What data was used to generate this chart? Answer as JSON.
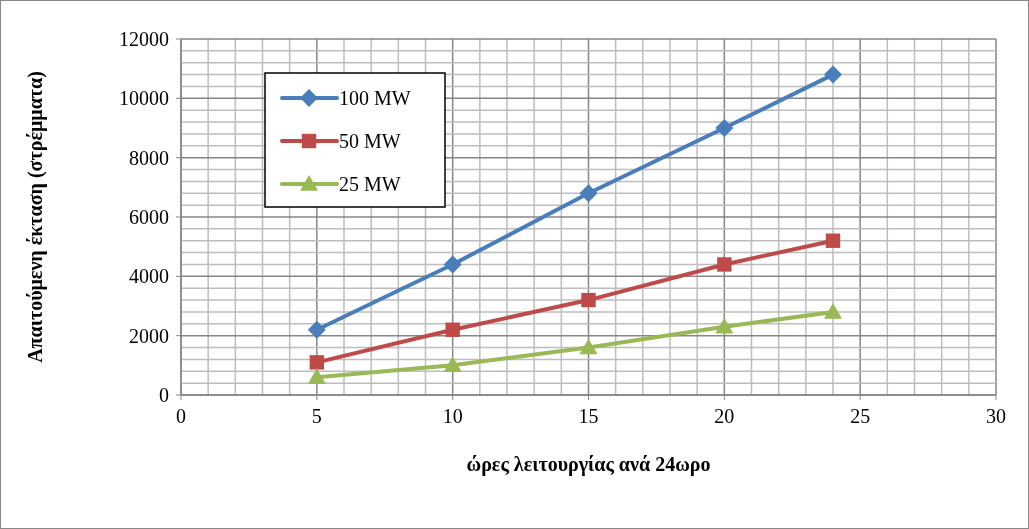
{
  "chart_data": {
    "type": "line",
    "xlabel": "ώρες λειτουργίας ανά 24ωρο",
    "ylabel": "Απαιτούμενη έκταση (στρέμματα)",
    "x": [
      5,
      10,
      15,
      20,
      24
    ],
    "series": [
      {
        "name": "100 MW",
        "color": "#4a7ebb",
        "marker": "diamond",
        "values": [
          2200,
          4400,
          6800,
          9000,
          10800
        ]
      },
      {
        "name": "50 MW",
        "color": "#be4b48",
        "marker": "square",
        "values": [
          1100,
          2200,
          3200,
          4400,
          5200
        ]
      },
      {
        "name": "25 MW",
        "color": "#98b954",
        "marker": "triangle",
        "values": [
          600,
          1000,
          1600,
          2300,
          2800
        ]
      }
    ],
    "xlim": [
      0,
      30
    ],
    "ylim": [
      0,
      12000
    ],
    "xticks": [
      0,
      {
        "value": 1,
        "label": null
      },
      {
        "value": 2,
        "label": null
      },
      {
        "value": 3,
        "label": null
      },
      {
        "value": 4,
        "label": null
      },
      5,
      {
        "value": 6,
        "label": null
      },
      {
        "value": 7,
        "label": null
      },
      {
        "value": 8,
        "label": null
      },
      {
        "value": 9,
        "label": null
      },
      10,
      {
        "value": 11,
        "label": null
      },
      {
        "value": 12,
        "label": null
      },
      {
        "value": 13,
        "label": null
      },
      {
        "value": 14,
        "label": null
      },
      15,
      {
        "value": 16,
        "label": null
      },
      {
        "value": 17,
        "label": null
      },
      {
        "value": 18,
        "label": null
      },
      {
        "value": 19,
        "label": null
      },
      20,
      {
        "value": 21,
        "label": null
      },
      {
        "value": 22,
        "label": null
      },
      {
        "value": 23,
        "label": null
      },
      {
        "value": 24,
        "label": null
      },
      25,
      {
        "value": 26,
        "label": null
      },
      {
        "value": 27,
        "label": null
      },
      {
        "value": 28,
        "label": null
      },
      {
        "value": 29,
        "label": null
      },
      30
    ],
    "yticks": [
      0,
      {
        "value": 400,
        "label": null
      },
      {
        "value": 800,
        "label": null
      },
      {
        "value": 1200,
        "label": null
      },
      {
        "value": 1600,
        "label": null
      },
      2000,
      {
        "value": 2400,
        "label": null
      },
      {
        "value": 2800,
        "label": null
      },
      {
        "value": 3200,
        "label": null
      },
      {
        "value": 3600,
        "label": null
      },
      4000,
      {
        "value": 4400,
        "label": null
      },
      {
        "value": 4800,
        "label": null
      },
      {
        "value": 5200,
        "label": null
      },
      {
        "value": 5600,
        "label": null
      },
      6000,
      {
        "value": 6400,
        "label": null
      },
      {
        "value": 6800,
        "label": null
      },
      {
        "value": 7200,
        "label": null
      },
      {
        "value": 7600,
        "label": null
      },
      8000,
      {
        "value": 8400,
        "label": null
      },
      {
        "value": 8800,
        "label": null
      },
      {
        "value": 9200,
        "label": null
      },
      {
        "value": 9600,
        "label": null
      },
      10000,
      {
        "value": 10400,
        "label": null
      },
      {
        "value": 10800,
        "label": null
      },
      {
        "value": 11200,
        "label": null
      },
      {
        "value": 11600,
        "label": null
      },
      12000
    ],
    "grid": true,
    "legend": "top left",
    "line_style": "solid"
  }
}
